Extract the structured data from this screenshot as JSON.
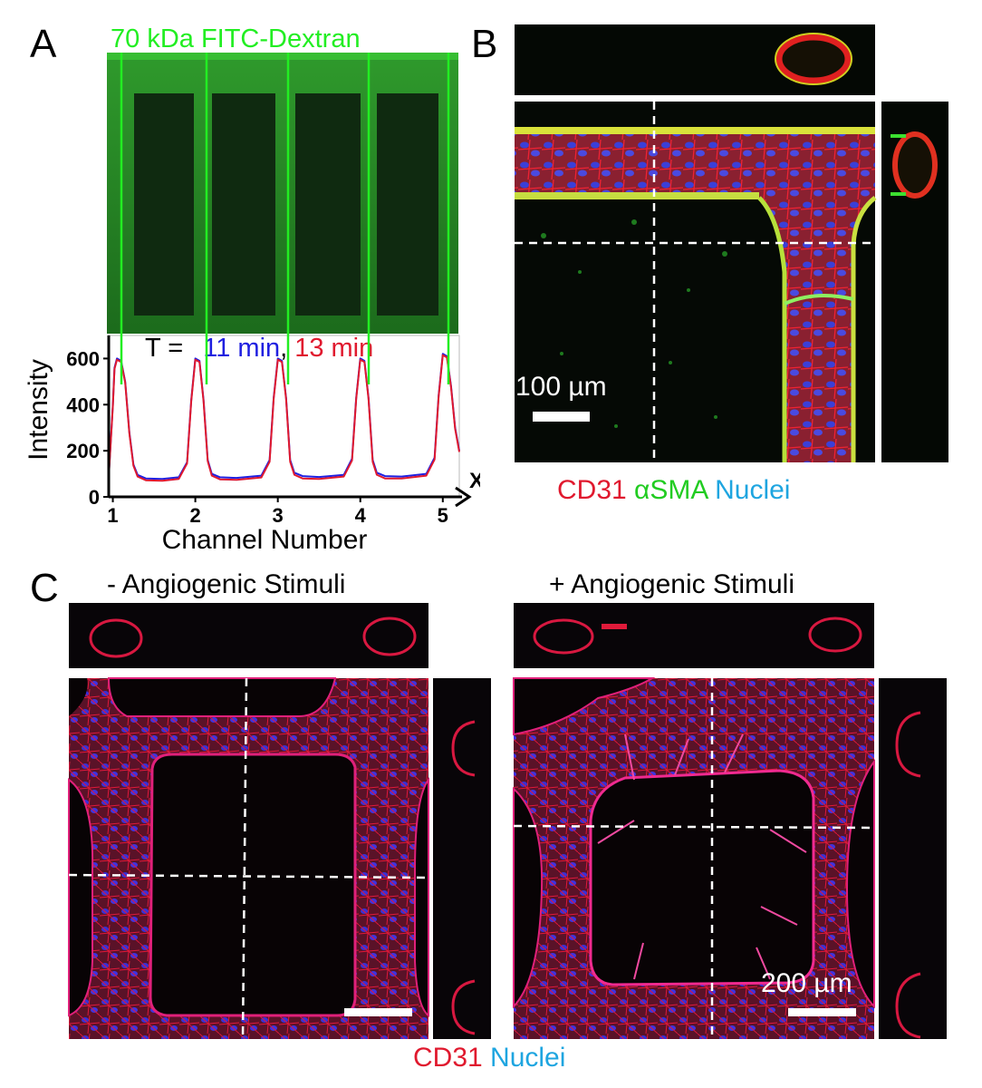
{
  "panel_a": {
    "label": "A",
    "image_title": "70 kDa FITC-Dextran",
    "legend": {
      "prefix": "T = ",
      "t1": "11 min",
      "sep": ",",
      "t2": "13 min"
    },
    "axis_x_end": "X",
    "colors": {
      "green": "#22ee22",
      "blue": "#1f1fe0",
      "red": "#e0192e"
    }
  },
  "panel_b": {
    "label": "B",
    "scale_label": "100 µm",
    "stain_legend": {
      "cd31": "CD31",
      "asma": "αSMA",
      "nuclei": "Nuclei"
    },
    "colors": {
      "cd31": "#e0192e",
      "asma": "#22cc22",
      "nuclei": "#1ea5e0"
    }
  },
  "panel_c": {
    "label": "C",
    "left_title": "- Angiogenic Stimuli",
    "right_title": "+ Angiogenic Stimuli",
    "scale_label": "200 µm",
    "stain_legend": {
      "cd31": "CD31",
      "nuclei": "Nuclei"
    }
  },
  "chart_data": {
    "type": "line",
    "xlabel": "Channel Number",
    "ylabel": "Intensity",
    "ylim": [
      0,
      700
    ],
    "xlim": [
      0.95,
      5.2
    ],
    "x_ticks": [
      "1",
      "2",
      "3",
      "4",
      "5"
    ],
    "y_ticks": [
      "0",
      "200",
      "400",
      "600"
    ],
    "grid": false,
    "legend": "top",
    "series": [
      {
        "name": "11 min",
        "color": "#1f1fe0",
        "x": [
          0.95,
          1.0,
          1.02,
          1.05,
          1.1,
          1.15,
          1.2,
          1.25,
          1.3,
          1.4,
          1.6,
          1.8,
          1.9,
          1.95,
          2.0,
          2.05,
          2.1,
          2.15,
          2.2,
          2.3,
          2.5,
          2.8,
          2.9,
          2.95,
          3.0,
          3.05,
          3.1,
          3.15,
          3.2,
          3.3,
          3.5,
          3.8,
          3.9,
          3.95,
          4.0,
          4.05,
          4.1,
          4.15,
          4.2,
          4.3,
          4.5,
          4.8,
          4.9,
          4.95,
          5.0,
          5.05,
          5.1,
          5.15,
          5.2
        ],
        "values": [
          90,
          400,
          560,
          600,
          590,
          500,
          280,
          140,
          95,
          80,
          78,
          85,
          150,
          420,
          600,
          590,
          420,
          160,
          100,
          85,
          82,
          92,
          160,
          430,
          600,
          590,
          430,
          160,
          105,
          90,
          86,
          95,
          165,
          430,
          600,
          590,
          430,
          160,
          105,
          90,
          88,
          100,
          170,
          440,
          620,
          610,
          480,
          300,
          200
        ]
      },
      {
        "name": "13 min",
        "color": "#e0192e",
        "x": [
          0.95,
          1.0,
          1.02,
          1.05,
          1.1,
          1.15,
          1.2,
          1.25,
          1.3,
          1.4,
          1.6,
          1.8,
          1.9,
          1.95,
          2.0,
          2.05,
          2.1,
          2.15,
          2.2,
          2.3,
          2.5,
          2.8,
          2.9,
          2.95,
          3.0,
          3.05,
          3.1,
          3.15,
          3.2,
          3.3,
          3.5,
          3.8,
          3.9,
          3.95,
          4.0,
          4.05,
          4.1,
          4.15,
          4.2,
          4.3,
          4.5,
          4.8,
          4.9,
          4.95,
          5.0,
          5.05,
          5.1,
          5.15,
          5.2
        ],
        "values": [
          85,
          395,
          555,
          595,
          585,
          495,
          275,
          135,
          88,
          72,
          70,
          78,
          145,
          415,
          595,
          585,
          415,
          155,
          92,
          76,
          74,
          84,
          152,
          425,
          595,
          585,
          425,
          152,
          96,
          80,
          78,
          88,
          158,
          425,
          595,
          585,
          425,
          152,
          96,
          80,
          80,
          92,
          162,
          435,
          615,
          605,
          475,
          295,
          195
        ]
      }
    ]
  }
}
